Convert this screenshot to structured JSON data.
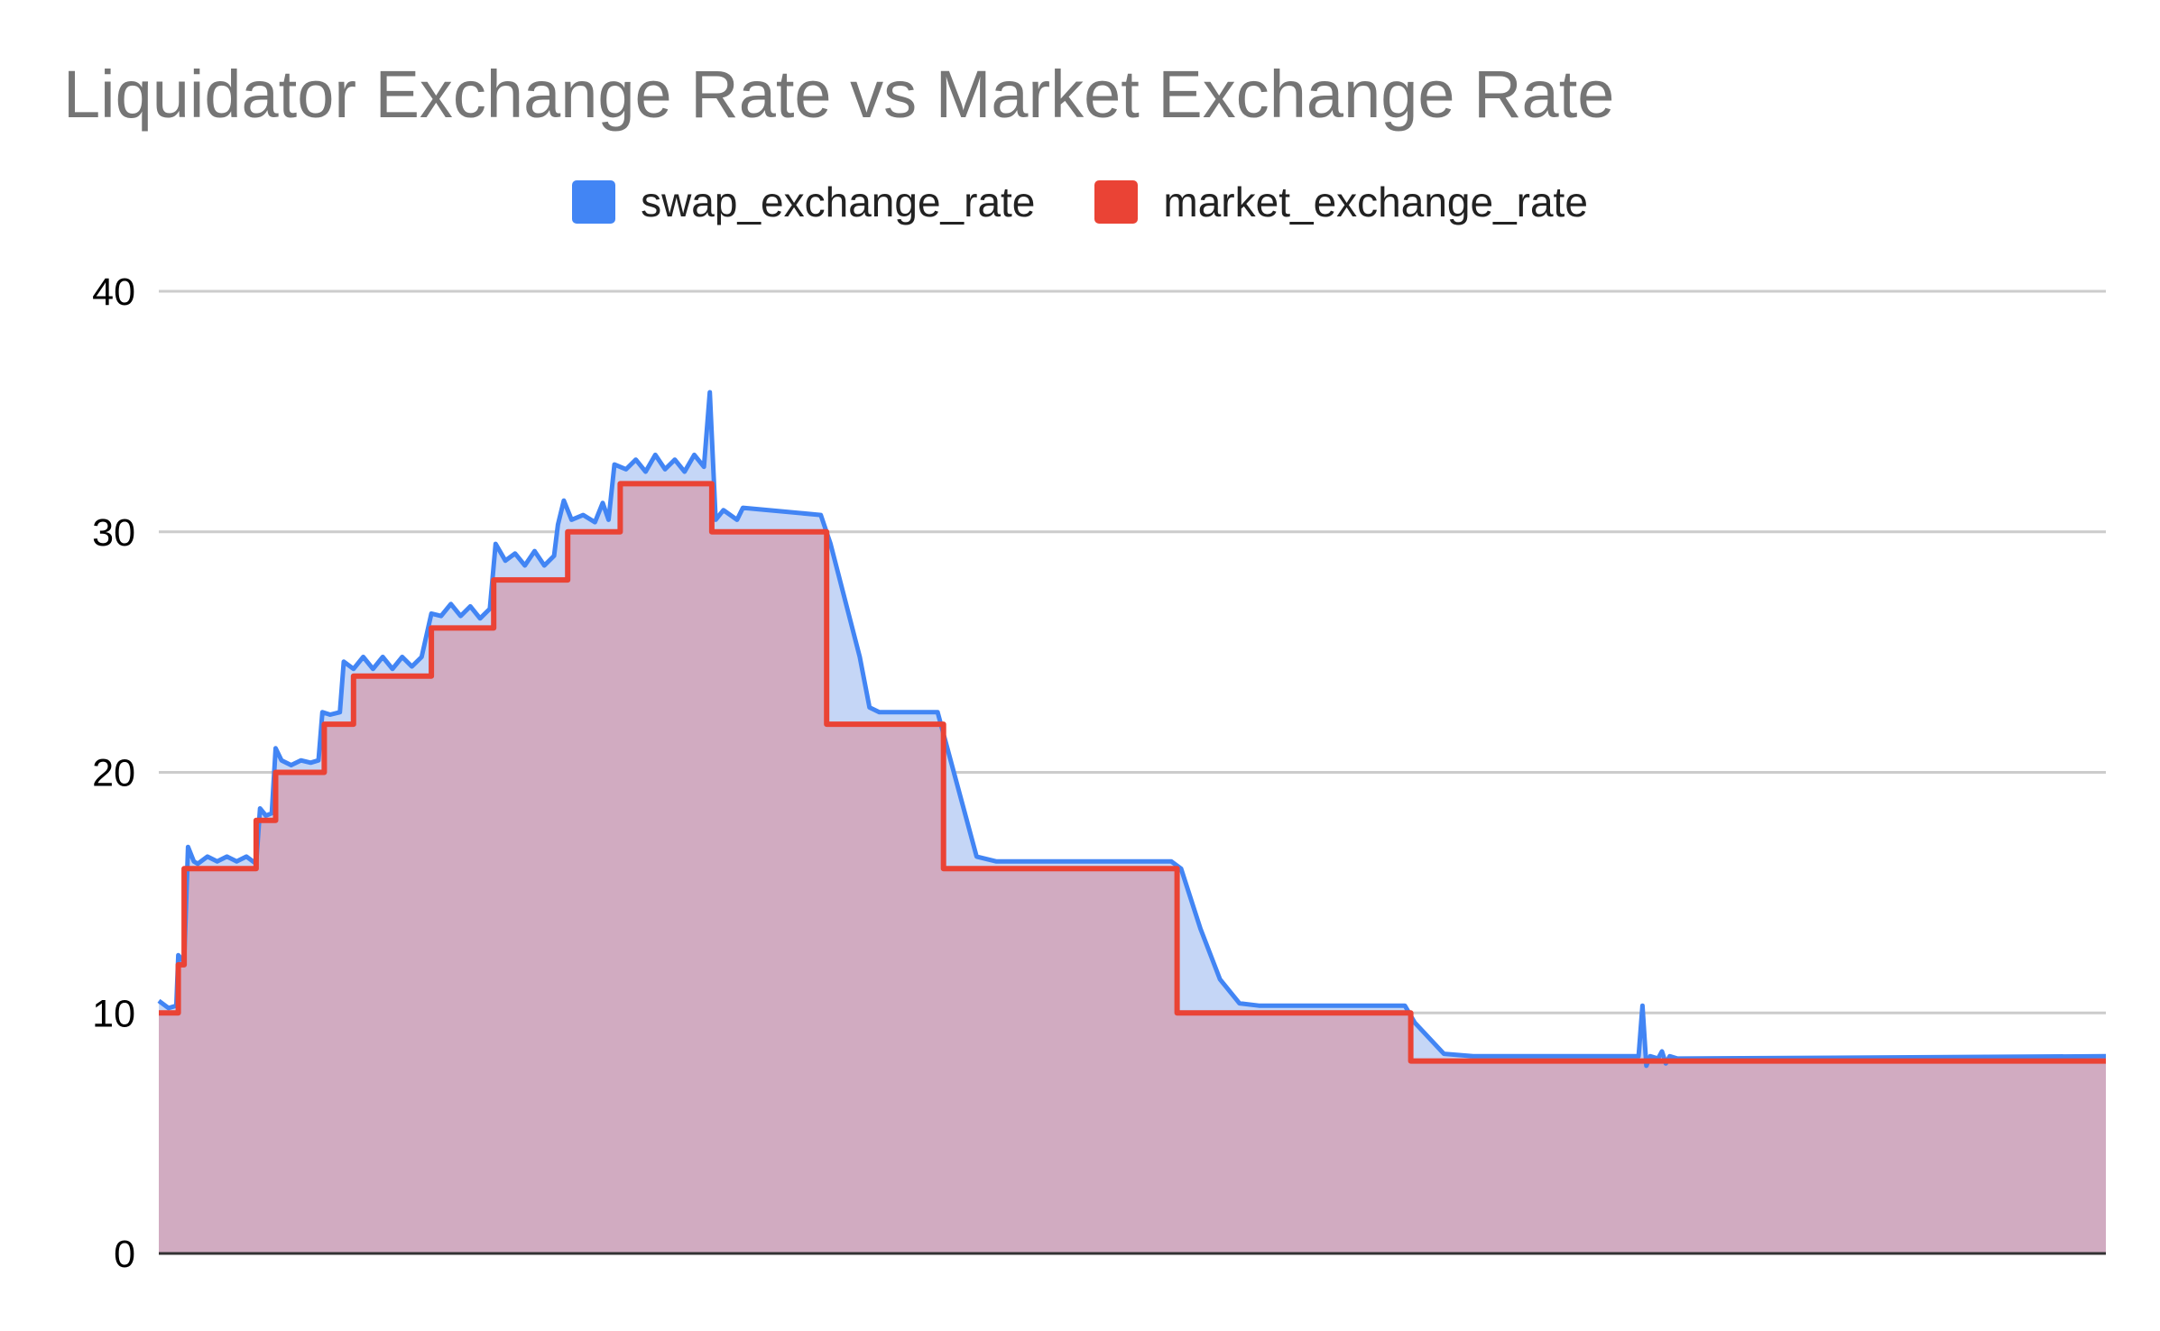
{
  "chart_data": {
    "type": "area",
    "title": "Liquidator Exchange Rate vs Market Exchange Rate",
    "xlabel": "",
    "ylabel": "",
    "ylim": [
      0,
      40
    ],
    "yticks": [
      0,
      10,
      20,
      30,
      40
    ],
    "grid": true,
    "legend": "top",
    "series": [
      {
        "name": "swap_exchange_rate",
        "color": "#4285f4",
        "fill": "#c5d6f6",
        "points": [
          [
            0,
            10.5
          ],
          [
            0.005,
            10.2
          ],
          [
            0.009,
            10.3
          ],
          [
            0.01,
            12.4
          ],
          [
            0.013,
            12.1
          ],
          [
            0.015,
            16.9
          ],
          [
            0.018,
            16.3
          ],
          [
            0.02,
            16.2
          ],
          [
            0.025,
            16.5
          ],
          [
            0.03,
            16.3
          ],
          [
            0.035,
            16.5
          ],
          [
            0.04,
            16.3
          ],
          [
            0.045,
            16.5
          ],
          [
            0.05,
            16.2
          ],
          [
            0.052,
            18.5
          ],
          [
            0.055,
            18.2
          ],
          [
            0.058,
            18.3
          ],
          [
            0.06,
            21
          ],
          [
            0.063,
            20.5
          ],
          [
            0.068,
            20.3
          ],
          [
            0.073,
            20.5
          ],
          [
            0.078,
            20.4
          ],
          [
            0.082,
            20.5
          ],
          [
            0.084,
            22.5
          ],
          [
            0.088,
            22.4
          ],
          [
            0.093,
            22.5
          ],
          [
            0.095,
            24.6
          ],
          [
            0.1,
            24.3
          ],
          [
            0.105,
            24.8
          ],
          [
            0.11,
            24.3
          ],
          [
            0.115,
            24.8
          ],
          [
            0.12,
            24.3
          ],
          [
            0.125,
            24.8
          ],
          [
            0.13,
            24.4
          ],
          [
            0.135,
            24.8
          ],
          [
            0.14,
            26.6
          ],
          [
            0.145,
            26.5
          ],
          [
            0.15,
            27
          ],
          [
            0.155,
            26.5
          ],
          [
            0.16,
            26.9
          ],
          [
            0.165,
            26.4
          ],
          [
            0.17,
            26.8
          ],
          [
            0.173,
            29.5
          ],
          [
            0.178,
            28.8
          ],
          [
            0.183,
            29.1
          ],
          [
            0.188,
            28.6
          ],
          [
            0.193,
            29.2
          ],
          [
            0.198,
            28.6
          ],
          [
            0.203,
            29
          ],
          [
            0.205,
            30.3
          ],
          [
            0.208,
            31.3
          ],
          [
            0.212,
            30.5
          ],
          [
            0.218,
            30.7
          ],
          [
            0.224,
            30.4
          ],
          [
            0.228,
            31.2
          ],
          [
            0.231,
            30.5
          ],
          [
            0.234,
            32.8
          ],
          [
            0.24,
            32.6
          ],
          [
            0.245,
            33
          ],
          [
            0.25,
            32.5
          ],
          [
            0.255,
            33.2
          ],
          [
            0.26,
            32.6
          ],
          [
            0.265,
            33
          ],
          [
            0.27,
            32.5
          ],
          [
            0.275,
            33.2
          ],
          [
            0.28,
            32.7
          ],
          [
            0.283,
            35.8
          ],
          [
            0.286,
            30.5
          ],
          [
            0.29,
            30.9
          ],
          [
            0.297,
            30.5
          ],
          [
            0.3,
            31
          ],
          [
            0.34,
            30.7
          ],
          [
            0.345,
            29.5
          ],
          [
            0.36,
            24.8
          ],
          [
            0.365,
            22.7
          ],
          [
            0.37,
            22.5
          ],
          [
            0.38,
            22.5
          ],
          [
            0.4,
            22.5
          ],
          [
            0.405,
            21
          ],
          [
            0.42,
            16.5
          ],
          [
            0.43,
            16.3
          ],
          [
            0.44,
            16.3
          ],
          [
            0.52,
            16.3
          ],
          [
            0.525,
            16
          ],
          [
            0.535,
            13.5
          ],
          [
            0.545,
            11.4
          ],
          [
            0.555,
            10.4
          ],
          [
            0.565,
            10.3
          ],
          [
            0.64,
            10.3
          ],
          [
            0.645,
            9.6
          ],
          [
            0.66,
            8.3
          ],
          [
            0.675,
            8.2
          ],
          [
            0.68,
            8.2
          ],
          [
            0.76,
            8.2
          ],
          [
            0.762,
            10.3
          ],
          [
            0.764,
            7.8
          ],
          [
            0.766,
            8.2
          ],
          [
            0.77,
            8.1
          ],
          [
            0.772,
            8.4
          ],
          [
            0.774,
            7.9
          ],
          [
            0.776,
            8.2
          ],
          [
            0.78,
            8.1
          ],
          [
            1,
            8.2
          ]
        ]
      },
      {
        "name": "market_exchange_rate",
        "color": "#ea4335",
        "fill": "#d1abc1",
        "points": [
          [
            0,
            10
          ],
          [
            0.01,
            10
          ],
          [
            0.01,
            12
          ],
          [
            0.013,
            12
          ],
          [
            0.013,
            16
          ],
          [
            0.05,
            16
          ],
          [
            0.05,
            18
          ],
          [
            0.06,
            18
          ],
          [
            0.06,
            20
          ],
          [
            0.085,
            20
          ],
          [
            0.085,
            22
          ],
          [
            0.1,
            22
          ],
          [
            0.1,
            24
          ],
          [
            0.14,
            24
          ],
          [
            0.14,
            26
          ],
          [
            0.172,
            26
          ],
          [
            0.172,
            28
          ],
          [
            0.21,
            28
          ],
          [
            0.21,
            30
          ],
          [
            0.237,
            30
          ],
          [
            0.237,
            32
          ],
          [
            0.284,
            32
          ],
          [
            0.284,
            30
          ],
          [
            0.343,
            30
          ],
          [
            0.343,
            22
          ],
          [
            0.403,
            22
          ],
          [
            0.403,
            16
          ],
          [
            0.523,
            16
          ],
          [
            0.523,
            10
          ],
          [
            0.643,
            10
          ],
          [
            0.643,
            8
          ],
          [
            1,
            8
          ]
        ]
      }
    ]
  }
}
